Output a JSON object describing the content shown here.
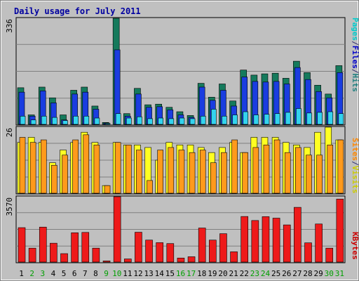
{
  "chart_data": {
    "type": "bar",
    "title": "Daily usage for July 2011",
    "categories": [
      "1",
      "2",
      "3",
      "4",
      "5",
      "6",
      "7",
      "8",
      "9",
      "10",
      "11",
      "12",
      "13",
      "14",
      "15",
      "16",
      "17",
      "18",
      "19",
      "20",
      "21",
      "22",
      "23",
      "24",
      "25",
      "26",
      "27",
      "28",
      "29",
      "30",
      "31"
    ],
    "weekend_days": [
      "2",
      "3",
      "9",
      "10",
      "16",
      "17",
      "23",
      "24",
      "30",
      "31"
    ],
    "panels": [
      {
        "id": "top",
        "ymax_label": "336",
        "ylim": [
          0,
          336
        ],
        "legend": [
          {
            "label": "Pages",
            "color": "#00cccc"
          },
          {
            "label": "/",
            "color": "#303070"
          },
          {
            "label": "Files",
            "color": "#0000cc"
          },
          {
            "label": "/",
            "color": "#303070"
          },
          {
            "label": "Hits",
            "color": "#208080"
          }
        ],
        "series": [
          {
            "name": "Hits",
            "color": "#157a5c",
            "values": [
              116,
              30,
              118,
              84,
              30,
              108,
              118,
              58,
              6,
              336,
              34,
              114,
              62,
              64,
              54,
              40,
              28,
              130,
              86,
              128,
              74,
              172,
              156,
              160,
              162,
              146,
              200,
              164,
              124,
              96,
              186
            ]
          },
          {
            "name": "Files",
            "color": "#1a3de0",
            "values": [
              102,
              26,
              106,
              68,
              14,
              96,
              102,
              48,
              4,
              236,
              26,
              96,
              54,
              56,
              46,
              30,
              22,
              118,
              76,
              108,
              58,
              150,
              136,
              134,
              136,
              128,
              180,
              142,
              104,
              84,
              164
            ]
          },
          {
            "name": "Pages",
            "color": "#33d3ee",
            "values": [
              26,
              14,
              26,
              22,
              12,
              26,
              26,
              20,
              3,
              34,
              20,
              24,
              18,
              20,
              18,
              20,
              18,
              26,
              48,
              26,
              30,
              40,
              30,
              32,
              34,
              38,
              50,
              36,
              38,
              40,
              34
            ]
          }
        ]
      },
      {
        "id": "middle",
        "ymax_label": "26",
        "ylim": [
          0,
          26
        ],
        "legend": [
          {
            "label": "Sites",
            "color": "#ff8800"
          },
          {
            "label": "/",
            "color": "#303070"
          },
          {
            "label": "Visits",
            "color": "#cccc00"
          }
        ],
        "series": [
          {
            "name": "Visits",
            "color": "#ffff22",
            "values": [
              20,
              22,
              20,
              12,
              17,
              20,
              24,
              20,
              3,
              20,
              19,
              19,
              18,
              13,
              20,
              19,
              19,
              18,
              16,
              18,
              20,
              16,
              22,
              22,
              22,
              20,
              19,
              18,
              24,
              26,
              21
            ]
          },
          {
            "name": "Sites",
            "color": "#ff9a1c",
            "values": [
              22,
              20,
              21,
              11,
              15,
              21,
              23,
              19,
              3,
              20,
              19,
              17,
              5,
              17,
              18,
              17,
              16,
              17,
              12,
              16,
              21,
              16,
              18,
              19,
              21,
              16,
              18,
              15,
              15,
              19,
              21
            ]
          }
        ]
      },
      {
        "id": "bottom",
        "ymax_label": "3570",
        "ylim": [
          0,
          3570
        ],
        "legend": [
          {
            "label": "KBytes",
            "color": "#cc0000"
          }
        ],
        "series": [
          {
            "name": "KBytes",
            "color": "#ee1a1a",
            "values": [
              1880,
              760,
              1910,
              1030,
              460,
              1600,
              1620,
              760,
              60,
              3570,
              170,
              1630,
              1200,
              1060,
              1010,
              220,
              290,
              1860,
              1200,
              1550,
              560,
              2490,
              2270,
              2480,
              2400,
              2030,
              2990,
              1050,
              2080,
              760,
              3440
            ]
          }
        ]
      }
    ]
  }
}
